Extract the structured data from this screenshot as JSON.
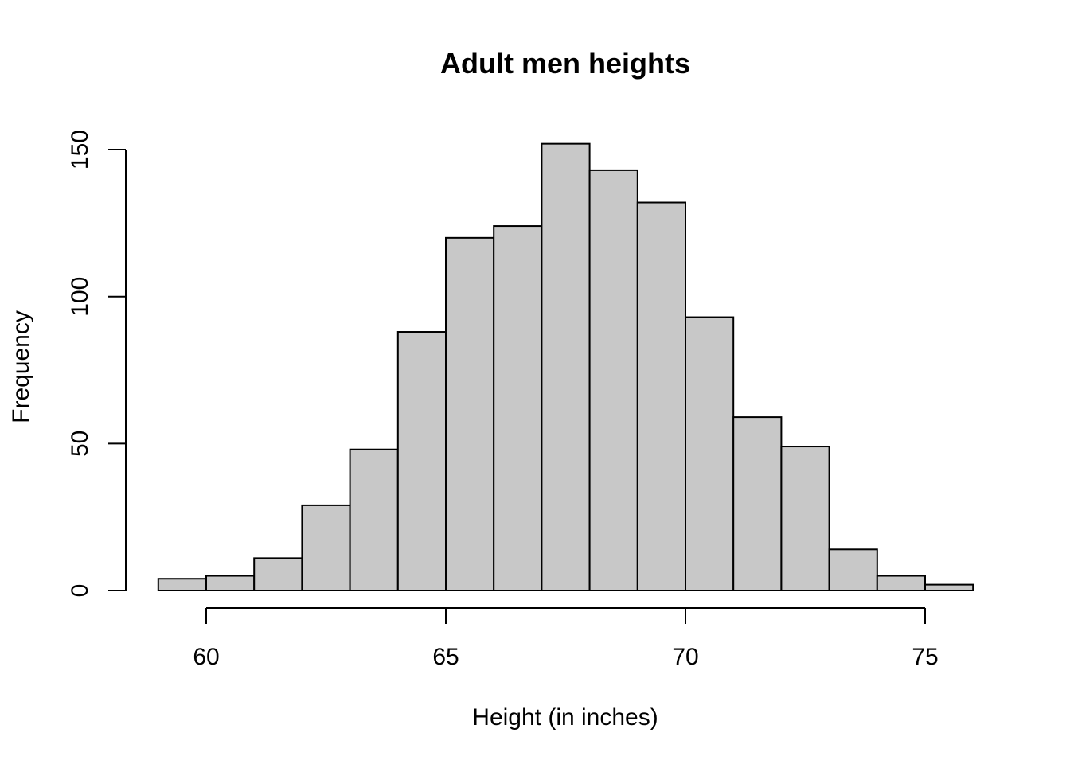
{
  "chart_data": {
    "type": "bar",
    "title": "Adult men heights",
    "xlabel": "Height (in inches)",
    "ylabel": "Frequency",
    "bins": [
      {
        "x0": 59,
        "x1": 60,
        "count": 4
      },
      {
        "x0": 60,
        "x1": 61,
        "count": 5
      },
      {
        "x0": 61,
        "x1": 62,
        "count": 11
      },
      {
        "x0": 62,
        "x1": 63,
        "count": 29
      },
      {
        "x0": 63,
        "x1": 64,
        "count": 48
      },
      {
        "x0": 64,
        "x1": 65,
        "count": 88
      },
      {
        "x0": 65,
        "x1": 66,
        "count": 120
      },
      {
        "x0": 66,
        "x1": 67,
        "count": 124
      },
      {
        "x0": 67,
        "x1": 68,
        "count": 152
      },
      {
        "x0": 68,
        "x1": 69,
        "count": 143
      },
      {
        "x0": 69,
        "x1": 70,
        "count": 132
      },
      {
        "x0": 70,
        "x1": 71,
        "count": 93
      },
      {
        "x0": 71,
        "x1": 72,
        "count": 59
      },
      {
        "x0": 72,
        "x1": 73,
        "count": 49
      },
      {
        "x0": 73,
        "x1": 74,
        "count": 14
      },
      {
        "x0": 74,
        "x1": 75,
        "count": 5
      },
      {
        "x0": 75,
        "x1": 76,
        "count": 2
      }
    ],
    "x_ticks": [
      60,
      65,
      70,
      75
    ],
    "y_ticks": [
      0,
      50,
      100,
      150
    ],
    "xlim": [
      59,
      76
    ],
    "ylim": [
      0,
      150
    ],
    "grid": false,
    "legend": "none",
    "bar_color": "#c8c8c8",
    "edge_color": "#000000"
  }
}
